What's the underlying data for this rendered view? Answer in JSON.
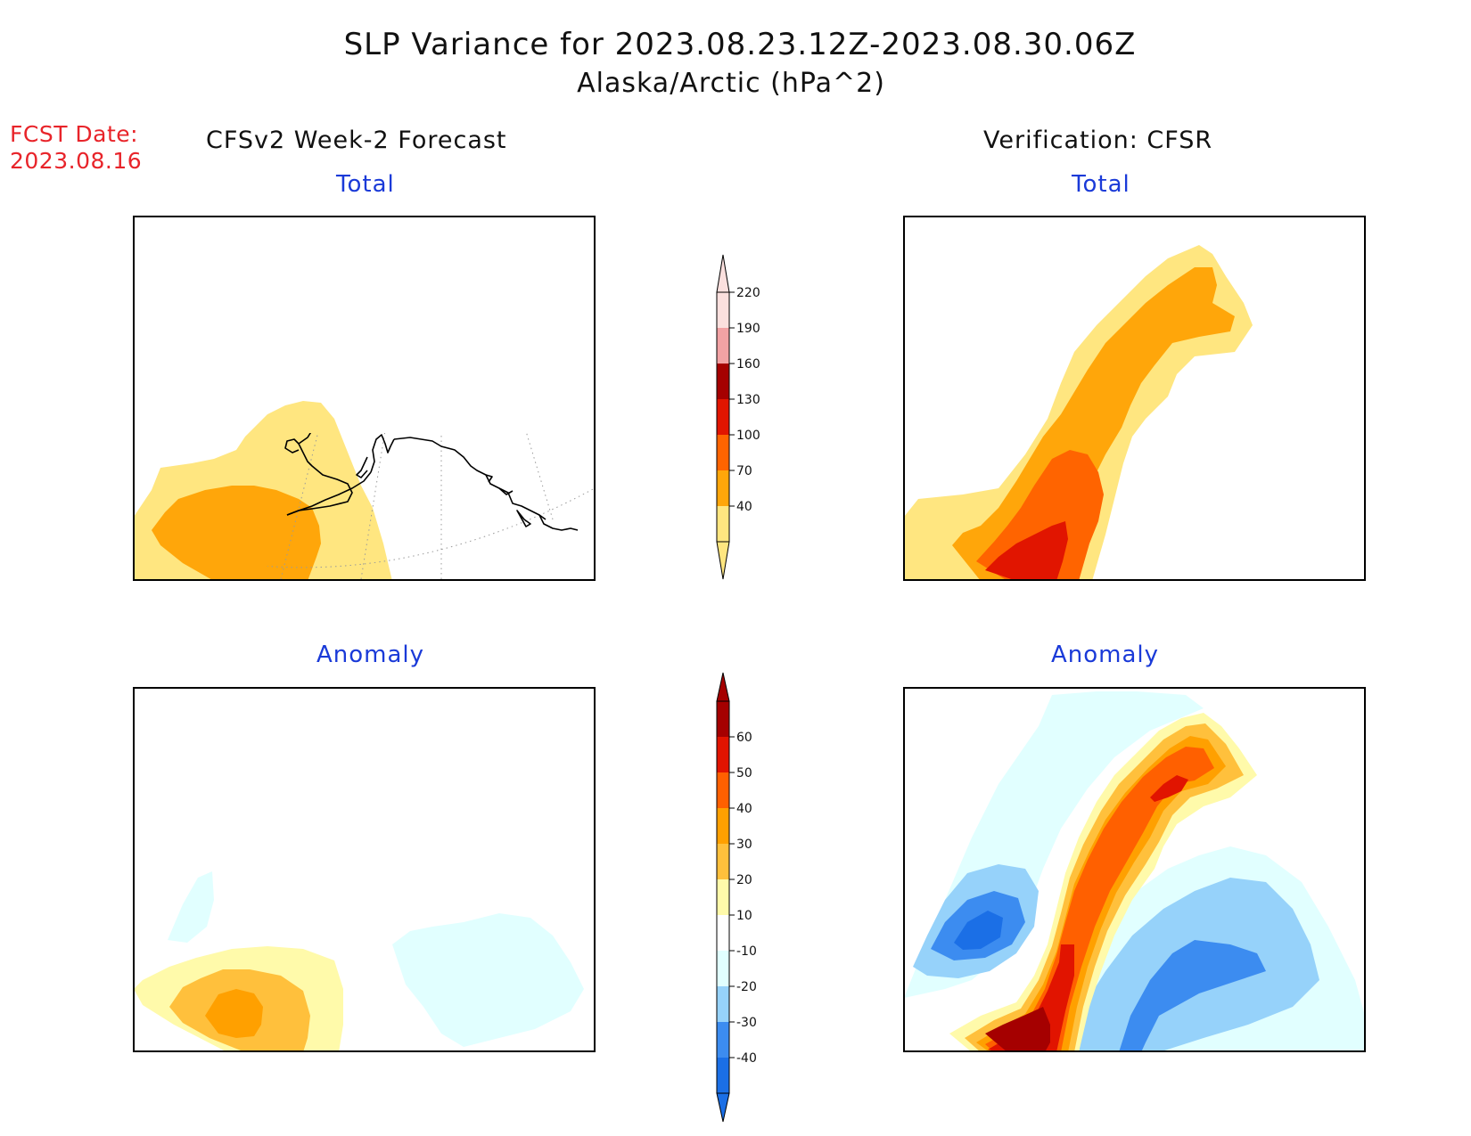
{
  "title": "SLP Variance for 2023.08.23.12Z-2023.08.30.06Z",
  "subtitle": "Alaska/Arctic (hPa^2)",
  "forecast_date": {
    "line1": "FCST Date:",
    "line2": "2023.08.16"
  },
  "left_heading": "CFSv2 Week-2 Forecast",
  "right_heading": "Verification: CFSR",
  "panels": {
    "top_left": "Total",
    "top_right": "Total",
    "bottom_left": "Anomaly",
    "bottom_right": "Anomaly"
  },
  "total_colorbar": {
    "labels": [
      "40",
      "70",
      "100",
      "130",
      "160",
      "190",
      "220"
    ],
    "colors": [
      "#ffe680",
      "#ffa60a",
      "#ff6400",
      "#e11500",
      "#a50000",
      "#f2a2a4",
      "#fbe0de"
    ]
  },
  "anomaly_colorbar": {
    "labels": [
      "-40",
      "-30",
      "-20",
      "-10",
      "10",
      "20",
      "30",
      "40",
      "50",
      "60"
    ],
    "colors": [
      "#1b6fe6",
      "#3c8cf0",
      "#96d2fa",
      "#e1ffff",
      "#ffffff",
      "#fffaaa",
      "#ffc03c",
      "#ffa000",
      "#ff6000",
      "#e11400",
      "#a50000"
    ]
  },
  "fill_colors": {
    "total_40": "#ffe680",
    "total_70": "#ffa60a",
    "total_100": "#ff6400",
    "total_130": "#e11500",
    "anom_10": "#fffaaa",
    "anom_20": "#ffc03c",
    "anom_30": "#ffa000",
    "anom_40": "#ff6000",
    "anom_50": "#e11400",
    "anom_60": "#a50000",
    "anom_m10": "#e1ffff",
    "anom_m20": "#96d2fa",
    "anom_m30": "#3c8cf0",
    "anom_m40": "#1b6fe6"
  }
}
